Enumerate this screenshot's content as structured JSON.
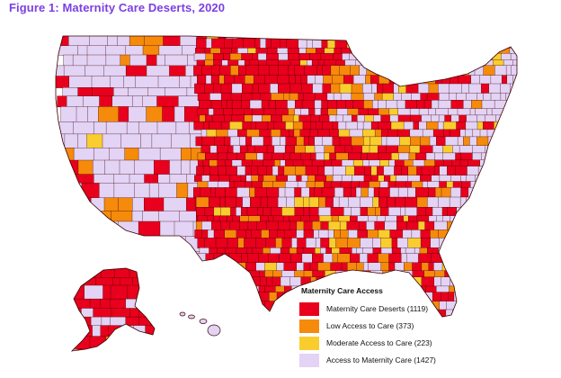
{
  "figure_title": "Figure 1: Maternity Care Deserts, 2020",
  "colors": {
    "desert": "#e8001c",
    "low": "#f58a0b",
    "moderate": "#f9cd2e",
    "access": "#e3d3f5",
    "border": "#3a0000",
    "title": "#7b3fe4"
  },
  "legend": {
    "title": "Maternity Care Access",
    "items": [
      {
        "label": "Maternity Care Deserts (1119)",
        "color": "#e8001c"
      },
      {
        "label": "Low Access to Care (373)",
        "color": "#f58a0b"
      },
      {
        "label": "Moderate Access to Care (223)",
        "color": "#f9cd2e"
      },
      {
        "label": "Access to Maternity Care (1427)",
        "color": "#e3d3f5"
      }
    ]
  }
}
